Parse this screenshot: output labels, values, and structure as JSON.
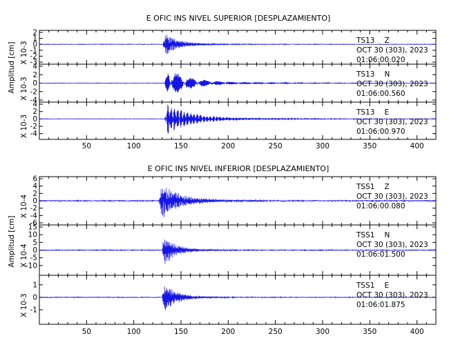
{
  "chart_data": [
    {
      "type": "line",
      "title": "E OFIC INS NIVEL SUPERIOR [DESPLAZAMIENTO]",
      "ylabel": "Amplitud [cm]",
      "xlabel": "",
      "xlim": [
        0,
        420
      ],
      "x_ticks": [
        "50",
        "100",
        "150",
        "200",
        "250",
        "300",
        "350",
        "400"
      ],
      "grid": false,
      "panels": [
        {
          "station": "TS13",
          "component": "Z",
          "date": "OCT 30 (303), 2023",
          "time": "01:06:00.020",
          "scale": "X 10-3",
          "ylim": [
            -3,
            2
          ],
          "y_ticks": [
            "2",
            "1",
            "0",
            "-1",
            "-2",
            "-3"
          ],
          "onset": 131,
          "peak": 2.0,
          "decay": 14,
          "noise": 0.05,
          "freq": 1.0,
          "seed": 11
        },
        {
          "station": "TS13",
          "component": "N",
          "date": "OCT 30 (303), 2023",
          "time": "01:06:00.560",
          "scale": "X 10-3",
          "ylim": [
            -4,
            4
          ],
          "y_ticks": [
            "4",
            "2",
            "0",
            "-2",
            "-4"
          ],
          "onset": 133,
          "peak": 3.5,
          "decay": 22,
          "noise": 0.06,
          "freq": 0.85,
          "seed": 23
        },
        {
          "station": "TS13",
          "component": "E",
          "date": "OCT 30 (303), 2023",
          "time": "01:06:00.970",
          "scale": "X 10-3",
          "ylim": [
            -5,
            4
          ],
          "y_ticks": [
            "4",
            "2",
            "0",
            "-2",
            "-4"
          ],
          "onset": 133,
          "peak": 4.2,
          "decay": 24,
          "noise": 0.06,
          "freq": 0.8,
          "seed": 37
        }
      ]
    },
    {
      "type": "line",
      "title": "E OFIC INS NIVEL INFERIOR [DESPLAZAMIENTO]",
      "ylabel": "Amplitud [cm]",
      "xlabel": "",
      "xlim": [
        0,
        420
      ],
      "x_ticks": [
        "50",
        "100",
        "150",
        "200",
        "250",
        "300",
        "350",
        "400"
      ],
      "grid": false,
      "panels": [
        {
          "station": "TSS1",
          "component": "Z",
          "date": "OCT 30 (303), 2023",
          "time": "01:06:00.080",
          "scale": "X 10-4",
          "ylim": [
            -6,
            6
          ],
          "y_ticks": [
            "6",
            "4",
            "2",
            "0",
            "-2",
            "-4",
            "-6"
          ],
          "onset": 127,
          "peak": 5.2,
          "decay": 18,
          "noise": 0.15,
          "freq": 1.0,
          "seed": 41
        },
        {
          "station": "TSS1",
          "component": "N",
          "date": "OCT 30 (303), 2023",
          "time": "01:06:01.500",
          "scale": "X 10-4",
          "ylim": [
            -15,
            15
          ],
          "y_ticks": [
            "15",
            "10",
            "5",
            "0",
            "-5",
            "-10"
          ],
          "onset": 130,
          "peak": 13,
          "decay": 10,
          "noise": 0.3,
          "freq": 1.0,
          "seed": 53
        },
        {
          "station": "TSS1",
          "component": "E",
          "date": "OCT 30 (303), 2023",
          "time": "01:06:01.875",
          "scale": "X 10-3",
          "ylim": [
            -2,
            1.6
          ],
          "y_ticks": [
            "1",
            "0",
            "-1"
          ],
          "onset": 130,
          "peak": 1.3,
          "decay": 12,
          "noise": 0.03,
          "freq": 1.1,
          "seed": 67
        }
      ]
    }
  ],
  "style": {
    "trace_color": "#1515e6",
    "axis_color": "#000000",
    "background": "#ffffff"
  }
}
